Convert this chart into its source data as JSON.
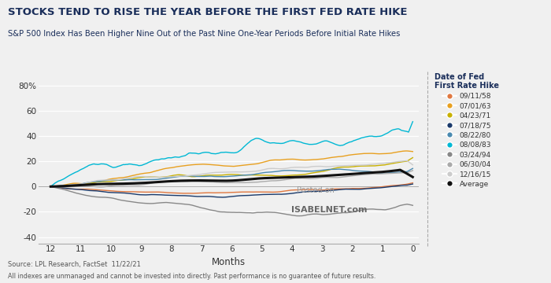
{
  "title": "STOCKS TEND TO RISE THE YEAR BEFORE THE FIRST FED RATE HIKE",
  "subtitle": "S&P 500 Index Has Been Higher Nine Out of the Past Nine One-Year Periods Before Initial Rate Hikes",
  "xlabel": "Months",
  "footnote1": "Source: LPL Research, FactSet  11/22/21",
  "footnote2": "All indexes are unmanaged and cannot be invested into directly. Past performance is no guarantee of future results.",
  "watermark_line1": "Posted on",
  "watermark_line2": "ISABELNET.com",
  "fig_bg_color": "#f0f0f0",
  "plot_bg_color": "#f0f0f0",
  "title_color": "#1a2e5a",
  "subtitle_color": "#1a2e5a",
  "footnote_color": "#555555",
  "ylim": [
    -45,
    85
  ],
  "yticks": [
    -40,
    -20,
    0,
    20,
    40,
    60,
    80
  ],
  "ytick_labels": [
    "-40",
    "-20",
    "0",
    "20",
    "40",
    "60",
    "80%"
  ],
  "xticks": [
    12,
    11,
    10,
    9,
    8,
    7,
    6,
    5,
    4,
    3,
    2,
    1,
    0
  ],
  "series": {
    "09/11/58": {
      "color": "#e07840",
      "lw": 1.0
    },
    "07/01/63": {
      "color": "#e8a020",
      "lw": 1.0
    },
    "04/23/71": {
      "color": "#c8b000",
      "lw": 1.0
    },
    "07/18/75": {
      "color": "#1a3a6b",
      "lw": 1.0
    },
    "08/22/80": {
      "color": "#4a8ab0",
      "lw": 1.0
    },
    "08/08/83": {
      "color": "#00b8d4",
      "lw": 1.0
    },
    "03/24/94": {
      "color": "#888888",
      "lw": 1.0
    },
    "06/30/04": {
      "color": "#aaaaaa",
      "lw": 1.0
    },
    "12/16/15": {
      "color": "#cccccc",
      "lw": 1.0
    },
    "Average": {
      "color": "#111111",
      "lw": 2.2
    }
  },
  "legend_title_line1": "Date of Fed",
  "legend_title_line2": "First Rate Hike"
}
